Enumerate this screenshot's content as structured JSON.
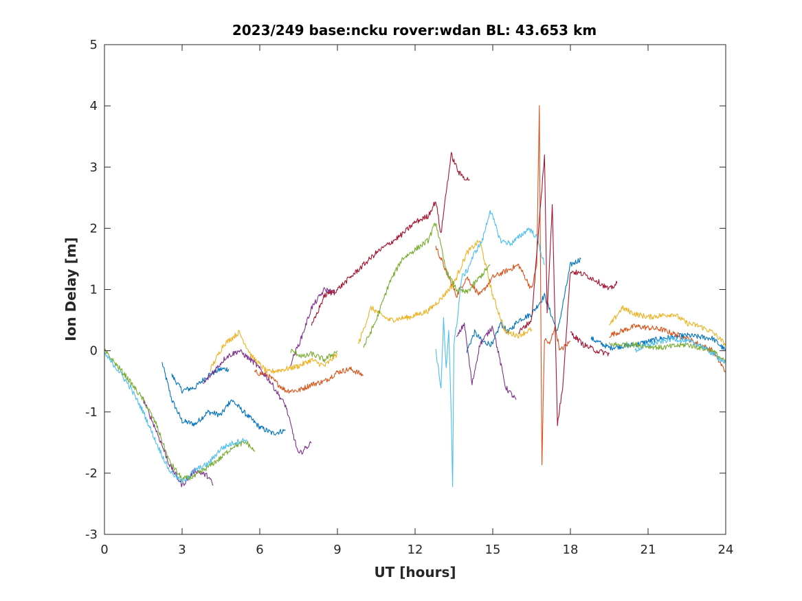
{
  "chart_data": {
    "type": "line",
    "title": "2023/249 base:ncku rover:wdan BL: 43.653 km",
    "xlabel": "UT [hours]",
    "ylabel": "Ion Delay [m]",
    "xlim": [
      0,
      24
    ],
    "ylim": [
      -3,
      5
    ],
    "xticks": [
      0,
      3,
      6,
      9,
      12,
      15,
      18,
      21,
      24
    ],
    "yticks": [
      -3,
      -2,
      -1,
      0,
      1,
      2,
      3,
      4,
      5
    ],
    "xtick_labels": [
      "0",
      "3",
      "6",
      "9",
      "12",
      "15",
      "18",
      "21",
      "24"
    ],
    "ytick_labels": [
      "-3",
      "-2",
      "-1",
      "0",
      "1",
      "2",
      "3",
      "4",
      "5"
    ],
    "grid": false,
    "legend": "none",
    "colors": [
      "#0072BD",
      "#D95319",
      "#EDB120",
      "#7E2F8E",
      "#77AC30",
      "#4DBEEE",
      "#A2142F"
    ],
    "series": [
      {
        "color": "#0072BD",
        "x": [
          2.23,
          2.6,
          3.0,
          3.5,
          4.0,
          4.5,
          4.9
        ],
        "y": [
          -0.2,
          -0.8,
          -1.15,
          -1.2,
          -1.0,
          -1.05,
          -0.8
        ]
      },
      {
        "color": "#0072BD",
        "x": [
          2.6,
          3.0,
          3.5,
          4.0,
          4.5,
          4.8
        ],
        "y": [
          -0.4,
          -0.65,
          -0.6,
          -0.4,
          -0.3,
          -0.3
        ]
      },
      {
        "color": "#0072BD",
        "x": [
          4.9,
          5.5,
          6.0,
          6.5,
          7.0
        ],
        "y": [
          -0.8,
          -1.05,
          -1.25,
          -1.35,
          -1.3
        ]
      },
      {
        "color": "#0072BD",
        "x": [
          14.0,
          14.3,
          14.6,
          15.0,
          15.3,
          15.6,
          16.0,
          16.5,
          17.0,
          17.5,
          18.0,
          18.4
        ],
        "y": [
          0.0,
          0.3,
          0.15,
          0.1,
          0.45,
          0.3,
          0.5,
          0.6,
          0.9,
          0.3,
          1.4,
          1.5
        ]
      },
      {
        "color": "#0072BD",
        "x": [
          18.8,
          19.5,
          20.5,
          21.5,
          22.5,
          23.5,
          24.0
        ],
        "y": [
          0.2,
          0.05,
          0.1,
          0.2,
          0.25,
          0.2,
          0.0
        ]
      },
      {
        "color": "#D95319",
        "x": [
          5.8,
          6.3,
          7.0,
          7.5,
          8.0,
          8.5,
          9.0,
          9.5,
          10.0
        ],
        "y": [
          -0.35,
          -0.4,
          -0.65,
          -0.65,
          -0.55,
          -0.5,
          -0.35,
          -0.3,
          -0.4
        ]
      },
      {
        "color": "#D95319",
        "x": [
          12.8,
          13.2,
          13.6,
          14.0,
          14.5,
          15.0,
          15.5,
          16.0,
          16.5,
          16.7,
          16.8,
          16.9,
          17.0,
          17.2,
          17.4,
          17.6,
          18.0
        ],
        "y": [
          1.7,
          1.3,
          0.9,
          1.2,
          0.9,
          1.2,
          1.3,
          1.4,
          1.0,
          1.4,
          4.0,
          -1.85,
          0.2,
          0.1,
          0.4,
          0.0,
          0.15
        ]
      },
      {
        "color": "#D95319",
        "x": [
          19.5,
          20.5,
          21.5,
          22.5,
          23.5,
          24.0
        ],
        "y": [
          0.25,
          0.4,
          0.35,
          0.2,
          0.0,
          -0.35
        ]
      },
      {
        "color": "#EDB120",
        "x": [
          4.1,
          4.6,
          5.2,
          5.7,
          6.3,
          7.0,
          7.5,
          8.0,
          8.5,
          9.0
        ],
        "y": [
          -0.3,
          0.1,
          0.3,
          -0.1,
          -0.35,
          -0.3,
          -0.25,
          -0.15,
          -0.25,
          -0.05
        ]
      },
      {
        "color": "#EDB120",
        "x": [
          9.8,
          10.3,
          11.0,
          11.8,
          12.5,
          13.0,
          13.5,
          14.0,
          14.5,
          15.0,
          15.5,
          16.0,
          16.5
        ],
        "y": [
          0.1,
          0.7,
          0.5,
          0.55,
          0.65,
          0.85,
          1.1,
          1.6,
          1.8,
          0.9,
          0.3,
          0.25,
          0.35
        ]
      },
      {
        "color": "#EDB120",
        "x": [
          19.5,
          20.0,
          20.5,
          21.0,
          22.0,
          22.5,
          23.0,
          23.5,
          24.0
        ],
        "y": [
          0.4,
          0.7,
          0.6,
          0.55,
          0.6,
          0.45,
          0.4,
          0.3,
          0.1
        ]
      },
      {
        "color": "#7E2F8E",
        "x": [
          1.5,
          2.0,
          2.5,
          3.0,
          3.5,
          4.0,
          4.2
        ],
        "y": [
          -0.8,
          -1.3,
          -1.85,
          -2.2,
          -1.95,
          -2.05,
          -2.2
        ]
      },
      {
        "color": "#7E2F8E",
        "x": [
          3.8,
          4.2,
          4.7,
          5.2,
          5.8,
          6.4,
          7.0,
          7.5,
          8.0
        ],
        "y": [
          -0.55,
          -0.35,
          -0.1,
          0.0,
          -0.2,
          -0.5,
          -0.9,
          -1.7,
          -1.5
        ]
      },
      {
        "color": "#7E2F8E",
        "x": [
          7.2,
          7.6,
          8.0,
          8.5,
          8.9
        ],
        "y": [
          -0.2,
          0.2,
          0.7,
          1.0,
          0.95
        ]
      },
      {
        "color": "#7E2F8E",
        "x": [
          13.6,
          13.9,
          14.2,
          14.5,
          15.0,
          15.5,
          15.9
        ],
        "y": [
          0.2,
          0.45,
          -0.55,
          0.1,
          0.4,
          -0.6,
          -0.8
        ]
      },
      {
        "color": "#77AC30",
        "x": [
          0.0,
          0.8,
          1.5,
          2.0,
          2.5,
          3.0,
          3.5,
          4.0,
          4.5,
          5.0,
          5.5,
          5.8
        ],
        "y": [
          0.0,
          -0.4,
          -0.8,
          -1.2,
          -1.8,
          -2.1,
          -2.05,
          -1.9,
          -1.75,
          -1.55,
          -1.5,
          -1.65
        ]
      },
      {
        "color": "#77AC30",
        "x": [
          7.2,
          7.7,
          8.0,
          8.5,
          9.0
        ],
        "y": [
          0.0,
          -0.1,
          -0.05,
          -0.15,
          0.0
        ]
      },
      {
        "color": "#77AC30",
        "x": [
          10.0,
          10.5,
          11.0,
          11.5,
          12.0,
          12.5,
          12.8,
          13.2,
          13.6,
          14.0,
          14.5,
          14.9
        ],
        "y": [
          0.05,
          0.5,
          1.1,
          1.5,
          1.65,
          1.8,
          2.1,
          1.3,
          1.0,
          0.95,
          1.2,
          1.4
        ]
      },
      {
        "color": "#77AC30",
        "x": [
          19.5,
          20.5,
          21.5,
          22.5,
          23.5,
          24.0
        ],
        "y": [
          0.1,
          0.1,
          0.05,
          0.1,
          0.0,
          -0.2
        ]
      },
      {
        "color": "#4DBEEE",
        "x": [
          0.0,
          0.5,
          1.0,
          1.5,
          2.0,
          2.5,
          3.0,
          3.5,
          4.0,
          4.5,
          5.0,
          5.5
        ],
        "y": [
          -0.05,
          -0.3,
          -0.6,
          -1.0,
          -1.5,
          -1.95,
          -2.15,
          -1.95,
          -1.85,
          -1.6,
          -1.5,
          -1.45
        ]
      },
      {
        "color": "#4DBEEE",
        "x": [
          12.8,
          13.0,
          13.1,
          13.2,
          13.3,
          13.4,
          13.45,
          13.5,
          13.6,
          13.8,
          14.0,
          14.3,
          14.6,
          14.9,
          15.3,
          15.7,
          16.0,
          16.4,
          16.7,
          17.0
        ],
        "y": [
          0.0,
          -0.6,
          0.5,
          -0.3,
          0.3,
          -1.1,
          -2.2,
          0.1,
          0.4,
          1.2,
          1.3,
          1.6,
          1.8,
          2.3,
          1.8,
          1.75,
          1.85,
          2.0,
          1.85,
          1.4
        ]
      },
      {
        "color": "#4DBEEE",
        "x": [
          20.5,
          21.0,
          21.5,
          22.0,
          22.5,
          23.0,
          23.5,
          24.0
        ],
        "y": [
          0.0,
          0.1,
          0.15,
          0.2,
          0.15,
          0.1,
          -0.05,
          -0.2
        ]
      },
      {
        "color": "#A2142F",
        "x": [
          8.0,
          8.5,
          9.0,
          9.5,
          10.0,
          10.5,
          11.0,
          11.5,
          12.0,
          12.5,
          12.8,
          13.0,
          13.2,
          13.4,
          13.7,
          14.0,
          14.1
        ],
        "y": [
          0.4,
          0.9,
          1.0,
          1.2,
          1.4,
          1.6,
          1.75,
          1.9,
          2.1,
          2.2,
          2.45,
          1.9,
          2.6,
          3.2,
          2.9,
          2.8,
          2.8
        ]
      },
      {
        "color": "#A2142F",
        "x": [
          16.0,
          16.5,
          17.0,
          17.1,
          17.3,
          17.5,
          17.7,
          18.0,
          18.5,
          19.0,
          19.5,
          19.8
        ],
        "y": [
          0.3,
          0.5,
          3.2,
          0.6,
          2.4,
          -1.2,
          -0.6,
          1.3,
          1.25,
          1.15,
          1.0,
          1.1
        ]
      },
      {
        "color": "#A2142F",
        "x": [
          18.0,
          18.5,
          19.0,
          19.5
        ],
        "y": [
          0.3,
          0.1,
          0.0,
          -0.05
        ]
      }
    ]
  }
}
